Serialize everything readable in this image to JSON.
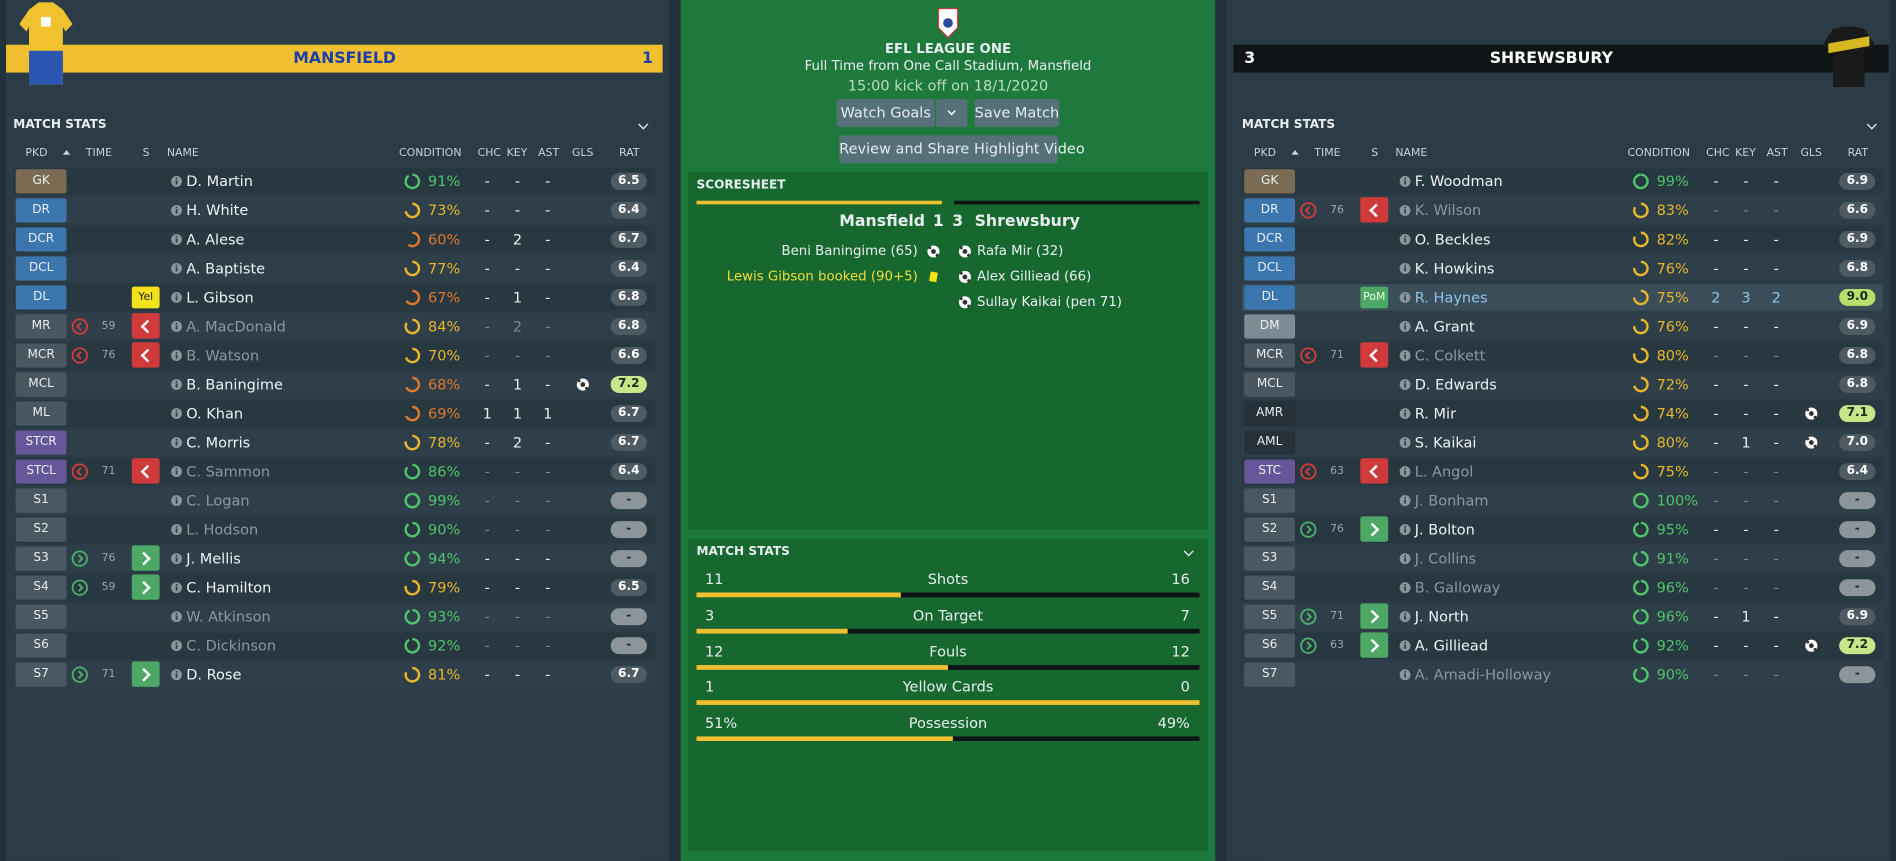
{
  "competition": "EFL LEAGUE ONE",
  "venue": "Full Time from One Call Stadium, Mansfield",
  "kickoff": "15:00 kick off on 18/1/2020",
  "buttons": {
    "watch_goals": "Watch Goals",
    "save_match": "Save Match",
    "highlights": "Review and Share Highlight Video"
  },
  "columns": [
    "PKD",
    "TIME",
    "S",
    "NAME",
    "CONDITION",
    "CHC",
    "KEY",
    "AST",
    "GLS",
    "RAT"
  ],
  "teams": [
    {
      "name": "MANSFIELD",
      "score": "1",
      "stats_title": "MATCH STATS",
      "players": [
        {
          "pos": "GK",
          "name": "D. Martin",
          "condition": "91%",
          "chc": "-",
          "key": "-",
          "ast": "-",
          "rat": "6.5"
        },
        {
          "pos": "DR",
          "name": "H. White",
          "condition": "73%",
          "chc": "-",
          "key": "-",
          "ast": "-",
          "rat": "6.4"
        },
        {
          "pos": "DCR",
          "name": "A. Alese",
          "condition": "60%",
          "chc": "-",
          "key": "2",
          "ast": "-",
          "rat": "6.7"
        },
        {
          "pos": "DCL",
          "name": "A. Baptiste",
          "condition": "77%",
          "chc": "-",
          "key": "-",
          "ast": "-",
          "rat": "6.4"
        },
        {
          "pos": "DL",
          "badge": "Yel",
          "name": "L. Gibson",
          "condition": "67%",
          "chc": "-",
          "key": "1",
          "ast": "-",
          "rat": "6.8"
        },
        {
          "pos": "MR",
          "sub": "off",
          "time": "59",
          "name": "A. MacDonald",
          "dim": true,
          "condition": "84%",
          "chc": "-",
          "key": "2",
          "ast": "-",
          "rat": "6.8"
        },
        {
          "pos": "MCR",
          "sub": "off",
          "time": "76",
          "name": "B. Watson",
          "dim": true,
          "condition": "70%",
          "chc": "-",
          "key": "-",
          "ast": "-",
          "rat": "6.6"
        },
        {
          "pos": "MCL",
          "name": "B. Baningime",
          "condition": "68%",
          "chc": "-",
          "key": "1",
          "ast": "-",
          "goal": true,
          "rat": "7.2",
          "highlight": true
        },
        {
          "pos": "ML",
          "name": "O. Khan",
          "condition": "69%",
          "chc": "1",
          "key": "1",
          "ast": "1",
          "rat": "6.7"
        },
        {
          "pos": "STCR",
          "name": "C. Morris",
          "condition": "78%",
          "chc": "-",
          "key": "2",
          "ast": "-",
          "rat": "6.7"
        },
        {
          "pos": "STCL",
          "sub": "off",
          "time": "71",
          "name": "C. Sammon",
          "dim": true,
          "condition": "86%",
          "chc": "-",
          "key": "-",
          "ast": "-",
          "rat": "6.4"
        },
        {
          "pos": "S1",
          "name": "C. Logan",
          "dim": true,
          "condition": "99%",
          "chc": "-",
          "key": "-",
          "ast": "-",
          "rat": "-"
        },
        {
          "pos": "S2",
          "name": "L. Hodson",
          "dim": true,
          "condition": "90%",
          "chc": "-",
          "key": "-",
          "ast": "-",
          "rat": "-"
        },
        {
          "pos": "S3",
          "sub": "on",
          "time": "76",
          "name": "J. Mellis",
          "condition": "94%",
          "chc": "-",
          "key": "-",
          "ast": "-",
          "rat": "-"
        },
        {
          "pos": "S4",
          "sub": "on",
          "time": "59",
          "name": "C. Hamilton",
          "condition": "79%",
          "chc": "-",
          "key": "-",
          "ast": "-",
          "rat": "6.5"
        },
        {
          "pos": "S5",
          "name": "W. Atkinson",
          "dim": true,
          "condition": "93%",
          "chc": "-",
          "key": "-",
          "ast": "-",
          "rat": "-"
        },
        {
          "pos": "S6",
          "name": "C. Dickinson",
          "dim": true,
          "condition": "92%",
          "chc": "-",
          "key": "-",
          "ast": "-",
          "rat": "-"
        },
        {
          "pos": "S7",
          "sub": "on",
          "time": "71",
          "name": "D. Rose",
          "condition": "81%",
          "chc": "-",
          "key": "-",
          "ast": "-",
          "rat": "6.7"
        }
      ]
    },
    {
      "name": "SHREWSBURY",
      "score": "3",
      "stats_title": "MATCH STATS",
      "players": [
        {
          "pos": "GK",
          "name": "F. Woodman",
          "condition": "99%",
          "chc": "-",
          "key": "-",
          "ast": "-",
          "rat": "6.9"
        },
        {
          "pos": "DR",
          "sub": "off",
          "time": "76",
          "name": "K. Wilson",
          "dim": true,
          "condition": "83%",
          "chc": "-",
          "key": "-",
          "ast": "-",
          "rat": "6.6"
        },
        {
          "pos": "DCR",
          "name": "O. Beckles",
          "condition": "82%",
          "chc": "-",
          "key": "-",
          "ast": "-",
          "rat": "6.9"
        },
        {
          "pos": "DCL",
          "name": "K. Howkins",
          "condition": "76%",
          "chc": "-",
          "key": "-",
          "ast": "-",
          "rat": "6.8"
        },
        {
          "pos": "DL",
          "badge": "PoM",
          "name": "R. Haynes",
          "pom": true,
          "condition": "75%",
          "chc": "2",
          "key": "3",
          "ast": "2",
          "rat": "9.0",
          "highlight": true
        },
        {
          "pos": "DM",
          "name": "A. Grant",
          "condition": "76%",
          "chc": "-",
          "key": "-",
          "ast": "-",
          "rat": "6.9"
        },
        {
          "pos": "MCR",
          "sub": "off",
          "time": "71",
          "name": "C. Colkett",
          "dim": true,
          "condition": "80%",
          "chc": "-",
          "key": "-",
          "ast": "-",
          "rat": "6.8"
        },
        {
          "pos": "MCL",
          "name": "D. Edwards",
          "condition": "72%",
          "chc": "-",
          "key": "-",
          "ast": "-",
          "rat": "6.8"
        },
        {
          "pos": "AMR",
          "name": "R. Mir",
          "condition": "74%",
          "chc": "-",
          "key": "-",
          "ast": "-",
          "goal": true,
          "rat": "7.1",
          "highlight": true
        },
        {
          "pos": "AML",
          "name": "S. Kaikai",
          "condition": "80%",
          "chc": "-",
          "key": "1",
          "ast": "-",
          "goal": true,
          "rat": "7.0"
        },
        {
          "pos": "STC",
          "sub": "off",
          "time": "63",
          "name": "L. Angol",
          "dim": true,
          "condition": "75%",
          "chc": "-",
          "key": "-",
          "ast": "-",
          "rat": "6.4"
        },
        {
          "pos": "S1",
          "name": "J. Bonham",
          "dim": true,
          "condition": "100%",
          "chc": "-",
          "key": "-",
          "ast": "-",
          "rat": "-"
        },
        {
          "pos": "S2",
          "sub": "on",
          "time": "76",
          "name": "J. Bolton",
          "condition": "95%",
          "chc": "-",
          "key": "-",
          "ast": "-",
          "rat": "-"
        },
        {
          "pos": "S3",
          "name": "J. Collins",
          "dim": true,
          "condition": "91%",
          "chc": "-",
          "key": "-",
          "ast": "-",
          "rat": "-"
        },
        {
          "pos": "S4",
          "name": "B. Galloway",
          "dim": true,
          "condition": "96%",
          "chc": "-",
          "key": "-",
          "ast": "-",
          "rat": "-"
        },
        {
          "pos": "S5",
          "sub": "on",
          "time": "71",
          "name": "J. North",
          "condition": "96%",
          "chc": "-",
          "key": "1",
          "ast": "-",
          "rat": "6.9"
        },
        {
          "pos": "S6",
          "sub": "on",
          "time": "63",
          "name": "A. Gilliead",
          "condition": "92%",
          "chc": "-",
          "key": "-",
          "ast": "-",
          "goal": true,
          "rat": "7.2",
          "highlight": true
        },
        {
          "pos": "S7",
          "name": "A. Amadi-Holloway",
          "dim": true,
          "condition": "90%",
          "chc": "-",
          "key": "-",
          "ast": "-",
          "rat": "-"
        }
      ]
    }
  ],
  "scoresheet": {
    "title": "SCORESHEET",
    "home_team": "Mansfield",
    "home_score": "1",
    "away_score": "3",
    "away_team": "Shrewsbury",
    "home_events": [
      {
        "text": "Beni Baningime (65)",
        "kind": "goal"
      },
      {
        "text": "Lewis Gibson booked (90+5)",
        "kind": "yellow"
      }
    ],
    "away_events": [
      {
        "text": "Rafa Mir (32)",
        "kind": "goal"
      },
      {
        "text": "Alex Gilliead (66)",
        "kind": "goal"
      },
      {
        "text": "Sullay Kaikai (pen 71)",
        "kind": "goal"
      }
    ]
  },
  "match_stats": {
    "title": "MATCH STATS",
    "rows": [
      {
        "label": "Shots",
        "home": "11",
        "away": "16"
      },
      {
        "label": "On Target",
        "home": "3",
        "away": "7"
      },
      {
        "label": "Fouls",
        "home": "12",
        "away": "12"
      },
      {
        "label": "Yellow Cards",
        "home": "1",
        "away": "0"
      },
      {
        "label": "Possession",
        "home": "51%",
        "away": "49%"
      }
    ]
  }
}
